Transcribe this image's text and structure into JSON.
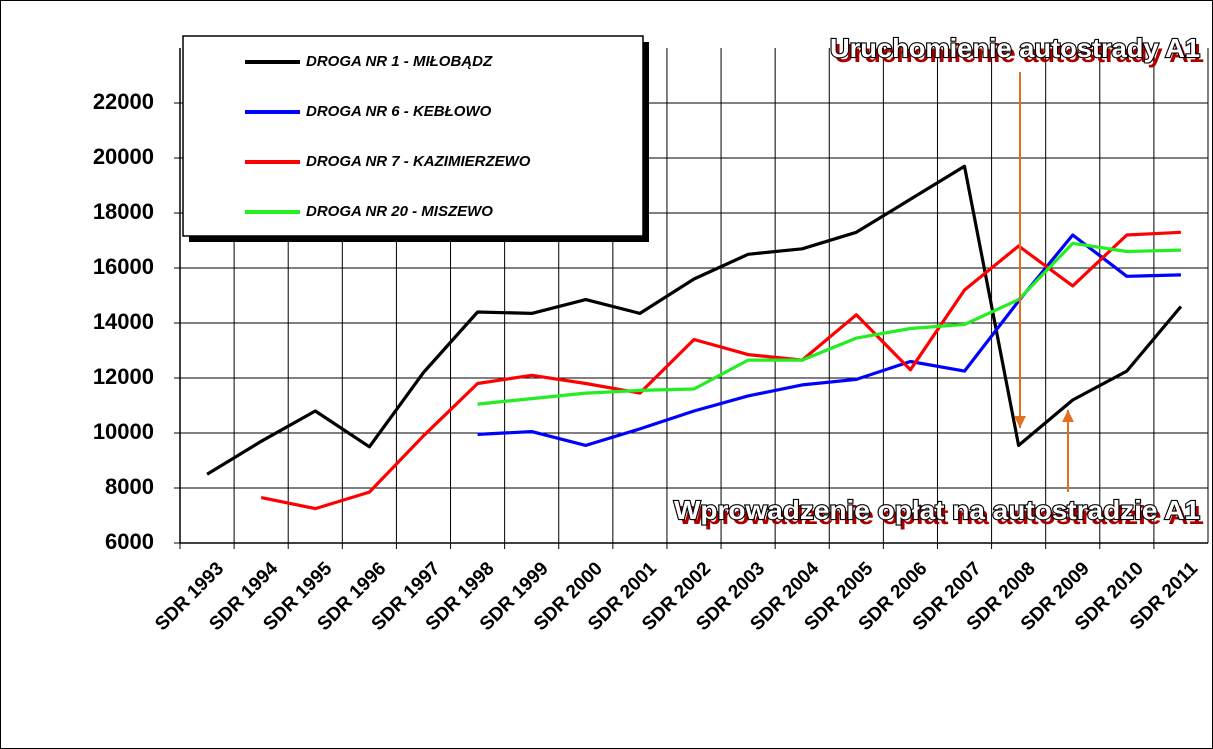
{
  "chart_data": {
    "type": "line",
    "categories": [
      "SDR 1993",
      "SDR 1994",
      "SDR 1995",
      "SDR 1996",
      "SDR 1997",
      "SDR 1998",
      "SDR 1999",
      "SDR 2000",
      "SDR 2001",
      "SDR 2002",
      "SDR 2003",
      "SDR 2004",
      "SDR 2005",
      "SDR 2006",
      "SDR 2007",
      "SDR 2008",
      "SDR 2009",
      "SDR 2010",
      "SDR 2011"
    ],
    "series": [
      {
        "name": "DROGA NR 1 - MIŁOBĄDZ",
        "color": "#000000",
        "values": [
          8500,
          9700,
          10800,
          9500,
          12200,
          14400,
          14350,
          14850,
          14350,
          15600,
          16500,
          16700,
          17300,
          18500,
          19700,
          9550,
          11200,
          12250,
          14600
        ]
      },
      {
        "name": "DROGA NR 6 - KEBŁOWO",
        "color": "#0000ff",
        "values": [
          null,
          null,
          null,
          null,
          null,
          9950,
          10050,
          9550,
          10150,
          10800,
          11350,
          11750,
          11950,
          12600,
          12250,
          14800,
          17200,
          15700,
          15750
        ]
      },
      {
        "name": "DROGA NR 7 - KAZIMIERZEWO",
        "color": "#ff0000",
        "values": [
          null,
          7650,
          7250,
          7850,
          9900,
          11800,
          12100,
          11800,
          11450,
          13400,
          12850,
          12650,
          14300,
          12300,
          15200,
          16800,
          15350,
          17200,
          17300
        ]
      },
      {
        "name": "DROGA NR 20 - MISZEWO",
        "color": "#22ee22",
        "values": [
          null,
          null,
          null,
          null,
          null,
          11050,
          11250,
          11450,
          11550,
          11600,
          12650,
          12650,
          13450,
          13800,
          13950,
          14850,
          16900,
          16600,
          16650
        ]
      }
    ],
    "ylim": [
      6000,
      24000
    ],
    "yticks": [
      6000,
      8000,
      10000,
      12000,
      14000,
      16000,
      18000,
      20000,
      22000
    ],
    "grid": true,
    "annotations": [
      "Uruchomienie autostrady A1",
      "Wprowadzenie opłat na autostradzie A1"
    ]
  }
}
